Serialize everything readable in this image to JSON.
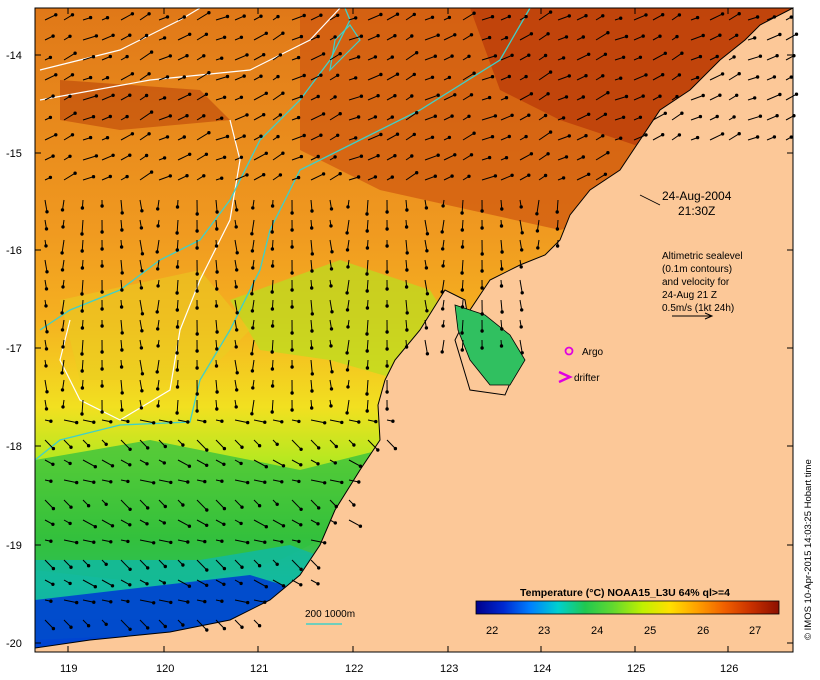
{
  "map": {
    "timestamp_date": "24-Aug-2004",
    "timestamp_time": "21:30Z",
    "altimetry_note": [
      "Altimetric sealevel",
      "(0.1m contours)",
      "and velocity for",
      "24-Aug 21 Z",
      "0.5m/s (1kt 24h)"
    ],
    "legend_argo": "Argo",
    "legend_drifter": "drifter",
    "isobath_label": "200  1000m",
    "colorbar_title": "Temperature (°C) NOAA15_L3U 64% ql>=4",
    "colorbar_ticks": [
      "22",
      "23",
      "24",
      "25",
      "26",
      "27"
    ],
    "colorbar_colors": [
      "#00008c",
      "#0028d0",
      "#0080ff",
      "#00d0d0",
      "#20c850",
      "#60d830",
      "#c0f000",
      "#ffe000",
      "#ffa000",
      "#f06000",
      "#c83000",
      "#8c1000"
    ],
    "x_ticks": [
      "119",
      "120",
      "121",
      "122",
      "123",
      "124",
      "125",
      "126"
    ],
    "y_ticks": [
      "-14",
      "-15",
      "-16",
      "-17",
      "-18",
      "-19",
      "-20"
    ],
    "credit": "© IMOS 10-Apr-2015 14:03:25 Hobart time",
    "colors": {
      "land": "#fcc898",
      "argo": "#e000e0",
      "drifter": "#e000e0",
      "isobath": "#40d0c8",
      "sealevel_contour": "#ffffff"
    }
  }
}
